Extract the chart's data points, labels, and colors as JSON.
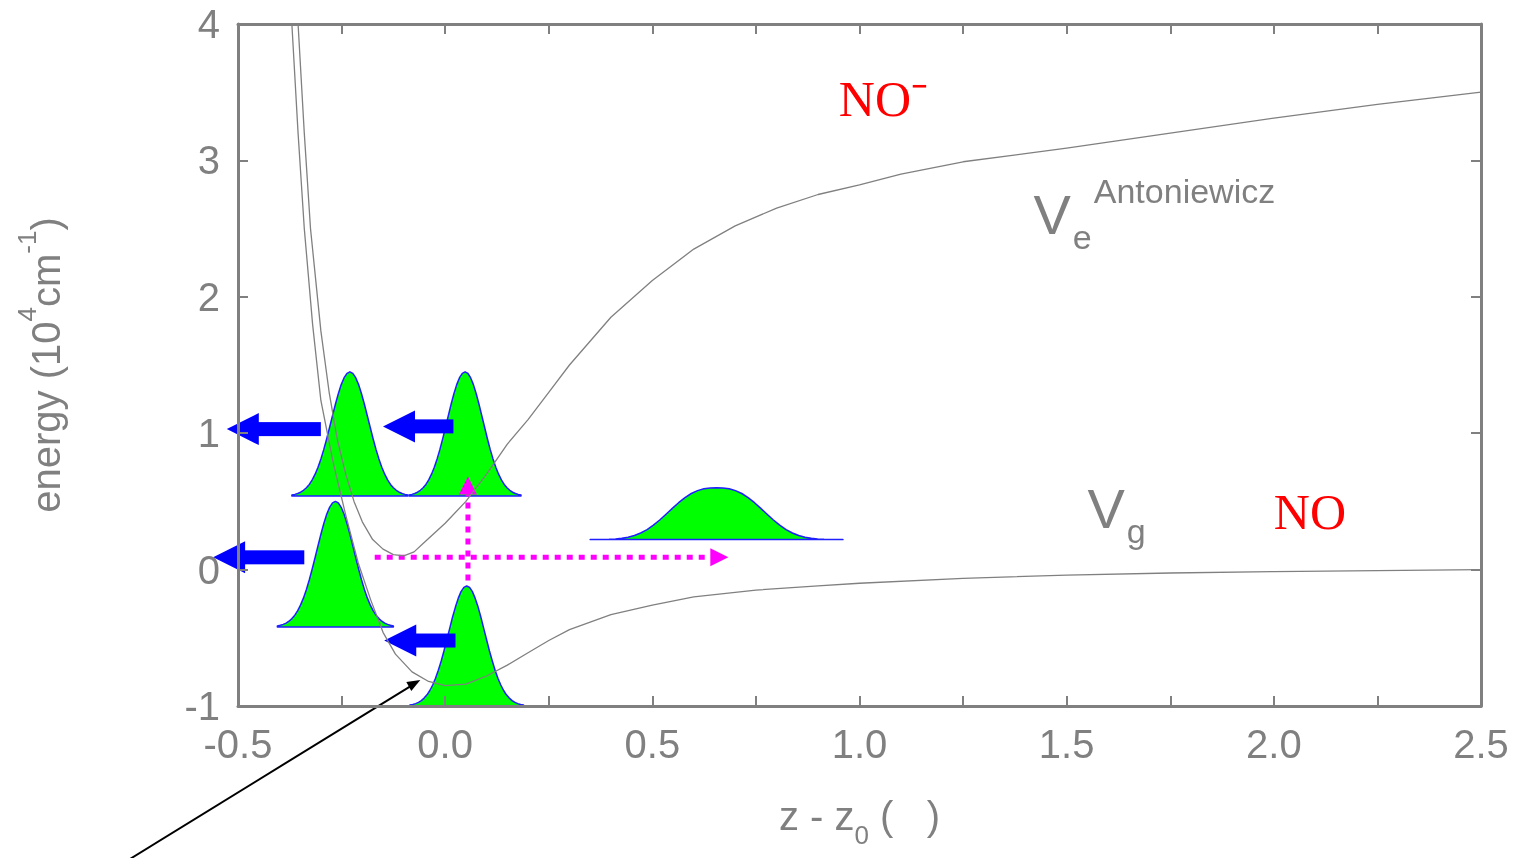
{
  "chart_data": {
    "type": "line",
    "xlabel": "z - z$_{0}$ (   )",
    "ylabel": "energy (10$^{4}$cm$^{-1}$)",
    "xlim": [
      -0.5,
      2.5
    ],
    "xticks": [
      {
        "value": -0.5,
        "label": "-0.5"
      },
      {
        "value": -0.25,
        "label": null
      },
      {
        "value": 0,
        "label": "0.0"
      },
      {
        "value": 0.25,
        "label": null
      },
      {
        "value": 0.5,
        "label": "0.5"
      },
      {
        "value": 0.75,
        "label": null
      },
      {
        "value": 1,
        "label": "1.0"
      },
      {
        "value": 1.25,
        "label": null
      },
      {
        "value": 1.5,
        "label": "1.5"
      },
      {
        "value": 1.75,
        "label": null
      },
      {
        "value": 2,
        "label": "2.0"
      },
      {
        "value": 2.25,
        "label": null
      },
      {
        "value": 2.5,
        "label": "2.5"
      }
    ],
    "ylim": [
      -1,
      4
    ],
    "yticks": [
      -1,
      0,
      1,
      2,
      3,
      4
    ],
    "grid": false,
    "legend": false,
    "marker": "none",
    "line_style": "solid",
    "series": [
      {
        "name": "V$_{e}$$^{Antoniewicz}$",
        "color": "#808080",
        "x": [
          -0.355,
          -0.34,
          -0.325,
          -0.3,
          -0.28,
          -0.26,
          -0.24,
          -0.22,
          -0.2,
          -0.175,
          -0.15,
          -0.125,
          -0.1,
          -0.075,
          -0.05,
          0.0,
          0.05,
          0.1,
          0.15,
          0.2,
          0.25,
          0.3,
          0.4,
          0.5,
          0.6,
          0.7,
          0.8,
          0.9,
          1.0,
          1.1,
          1.25,
          1.4,
          1.5,
          1.75,
          2.0,
          2.25,
          2.5
        ],
        "values": [
          4,
          3.2,
          2.5,
          1.75,
          1.3,
          0.95,
          0.7,
          0.5,
          0.35,
          0.22,
          0.15,
          0.11,
          0.1,
          0.13,
          0.2,
          0.34,
          0.5,
          0.7,
          0.92,
          1.1,
          1.3,
          1.5,
          1.85,
          2.12,
          2.35,
          2.52,
          2.65,
          2.75,
          2.82,
          2.9,
          2.99,
          3.05,
          3.09,
          3.2,
          3.31,
          3.41,
          3.5
        ]
      },
      {
        "name": "V$_{g}$",
        "color": "#808080",
        "x": [
          -0.37,
          -0.355,
          -0.34,
          -0.32,
          -0.3,
          -0.27,
          -0.24,
          -0.21,
          -0.18,
          -0.15,
          -0.12,
          -0.08,
          -0.04,
          0.0,
          0.05,
          0.1,
          0.15,
          0.2,
          0.25,
          0.3,
          0.4,
          0.5,
          0.6,
          0.75,
          0.9,
          1.0,
          1.25,
          1.5,
          1.75,
          2.0,
          2.5
        ],
        "values": [
          4,
          3.2,
          2.5,
          1.8,
          1.24,
          0.78,
          0.4,
          0.05,
          -0.22,
          -0.46,
          -0.62,
          -0.75,
          -0.82,
          -0.85,
          -0.84,
          -0.78,
          -0.7,
          -0.61,
          -0.52,
          -0.44,
          -0.33,
          -0.26,
          -0.2,
          -0.15,
          -0.12,
          -0.1,
          -0.065,
          -0.04,
          -0.025,
          -0.015,
          0
        ]
      }
    ],
    "annotations": [
      "NO⁻",
      "NO"
    ]
  }
}
